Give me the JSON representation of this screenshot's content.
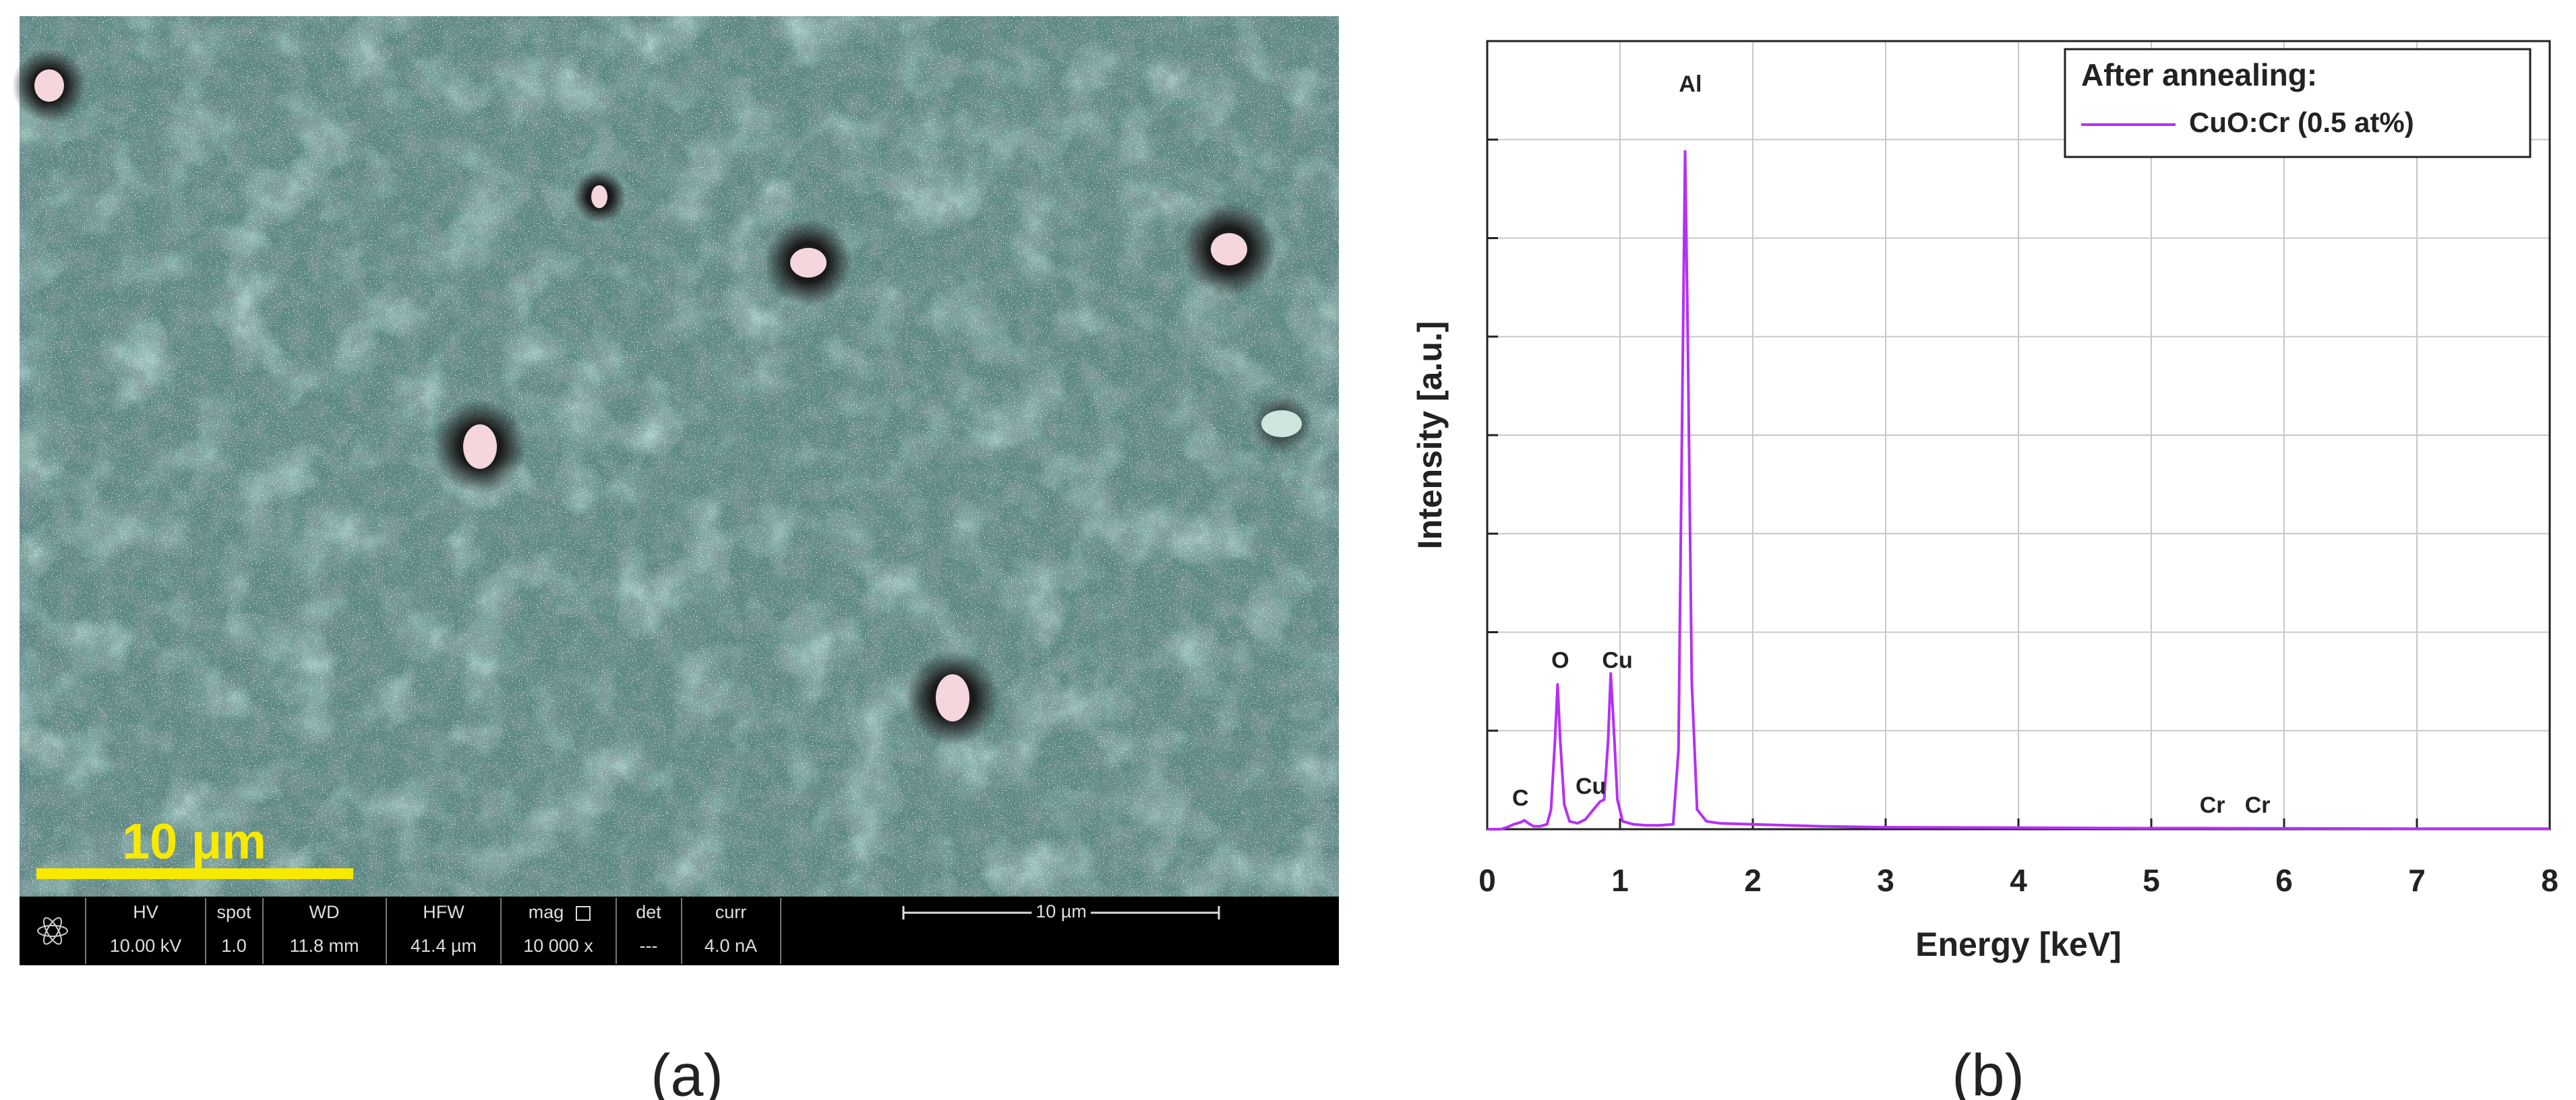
{
  "sem_image": {
    "scale_bar_label": "10 μm",
    "info_bar": {
      "headers": [
        "HV",
        "spot",
        "WD",
        "HFW",
        "mag",
        "det",
        "curr"
      ],
      "values": [
        "10.00 kV",
        "1.0",
        "11.8 mm",
        "41.4 µm",
        "10 000 x",
        "---",
        "4.0 nA"
      ],
      "scale_label": "10 µm"
    }
  },
  "panel_labels": [
    "(a)",
    "(b)"
  ],
  "chart_data": {
    "type": "line",
    "x_label": "Energy [keV]",
    "y_label": "Intensity [a.u.]",
    "x": [
      0,
      0.1,
      0.15,
      0.2,
      0.25,
      0.28,
      0.31,
      0.35,
      0.4,
      0.45,
      0.48,
      0.51,
      0.53,
      0.55,
      0.58,
      0.62,
      0.68,
      0.74,
      0.8,
      0.85,
      0.88,
      0.91,
      0.93,
      0.95,
      0.98,
      1.02,
      1.1,
      1.2,
      1.3,
      1.4,
      1.44,
      1.47,
      1.49,
      1.51,
      1.54,
      1.58,
      1.65,
      1.75,
      2.0,
      2.5,
      3,
      4,
      5,
      5.41,
      6,
      7,
      8
    ],
    "series": [
      {
        "name": "CuO:Cr (0.5 at%)",
        "color": "#b530f5",
        "values": [
          0,
          0,
          0.02,
          0.05,
          0.07,
          0.09,
          0.06,
          0.03,
          0.03,
          0.05,
          0.2,
          0.9,
          1.47,
          0.9,
          0.25,
          0.08,
          0.06,
          0.1,
          0.2,
          0.28,
          0.3,
          0.9,
          1.58,
          1.1,
          0.3,
          0.08,
          0.05,
          0.04,
          0.04,
          0.05,
          0.8,
          4.5,
          6.88,
          5.0,
          1.5,
          0.2,
          0.08,
          0.06,
          0.05,
          0.03,
          0.02,
          0.015,
          0.01,
          0.01,
          0.008,
          0.005,
          0.005
        ]
      }
    ],
    "xlim": [
      0,
      8
    ],
    "ylim": [
      0,
      8
    ],
    "xticks": [
      0,
      1,
      2,
      3,
      4,
      5,
      6,
      7,
      8
    ],
    "yticks": [
      0,
      1,
      2,
      3,
      4,
      5,
      6,
      7,
      8
    ],
    "ytick_labels": false,
    "grid": true,
    "legend": {
      "title": "After annealing:",
      "position": "upper right"
    },
    "annotations": [
      {
        "text": "C",
        "x": 0.25,
        "y": 0.3
      },
      {
        "text": "O",
        "x": 0.55,
        "y": 1.7
      },
      {
        "text": "Cu",
        "x": 0.98,
        "y": 1.7
      },
      {
        "text": "Cu",
        "x": 0.78,
        "y": 0.42
      },
      {
        "text": "Al",
        "x": 1.53,
        "y": 7.55
      },
      {
        "text": "Cr",
        "x": 5.46,
        "y": 0.23
      },
      {
        "text": "Cr",
        "x": 5.8,
        "y": 0.23
      }
    ]
  }
}
